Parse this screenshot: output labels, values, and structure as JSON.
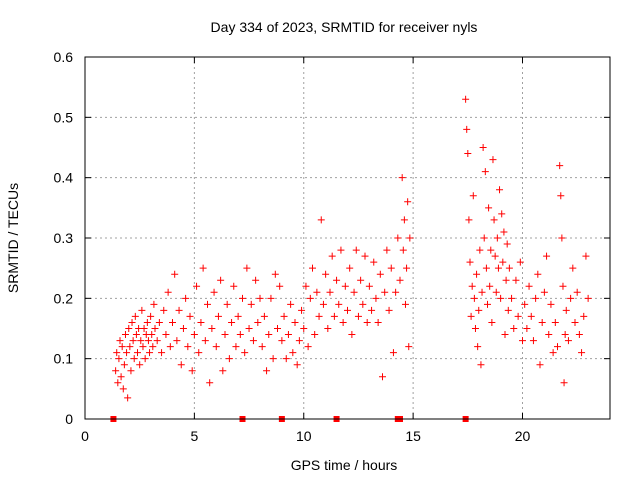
{
  "chart_data": {
    "type": "scatter",
    "title": "Day 334 of 2023, SRMTID for receiver nyls",
    "xlabel": "GPS time / hours",
    "ylabel": "SRMTID / TECUs",
    "xlim": [
      0,
      24
    ],
    "ylim": [
      0,
      0.6
    ],
    "xticks": [
      0,
      5,
      10,
      15,
      20
    ],
    "yticks": [
      0,
      0.1,
      0.2,
      0.3,
      0.4,
      0.5,
      0.6
    ],
    "xtick_labels": [
      "0",
      "5",
      "10",
      "15",
      "20"
    ],
    "ytick_labels": [
      "0",
      "0.1",
      "0.2",
      "0.3",
      "0.4",
      "0.5",
      "0.6"
    ],
    "grid": true,
    "marker": "+",
    "color": "#ff0000",
    "zero_markers_x": [
      1.3,
      7.2,
      9.0,
      11.5,
      14.3,
      14.4,
      17.4
    ],
    "series": [
      {
        "name": "SRMTID",
        "points": [
          [
            1.4,
            0.08
          ],
          [
            1.45,
            0.11
          ],
          [
            1.5,
            0.06
          ],
          [
            1.55,
            0.1
          ],
          [
            1.6,
            0.13
          ],
          [
            1.65,
            0.07
          ],
          [
            1.7,
            0.12
          ],
          [
            1.75,
            0.05
          ],
          [
            1.8,
            0.09
          ],
          [
            1.85,
            0.14
          ],
          [
            1.9,
            0.11
          ],
          [
            1.95,
            0.035
          ],
          [
            2.0,
            0.15
          ],
          [
            2.05,
            0.12
          ],
          [
            2.1,
            0.08
          ],
          [
            2.15,
            0.16
          ],
          [
            2.2,
            0.13
          ],
          [
            2.25,
            0.1
          ],
          [
            2.3,
            0.17
          ],
          [
            2.35,
            0.14
          ],
          [
            2.4,
            0.11
          ],
          [
            2.45,
            0.15
          ],
          [
            2.5,
            0.09
          ],
          [
            2.55,
            0.13
          ],
          [
            2.6,
            0.18
          ],
          [
            2.65,
            0.12
          ],
          [
            2.7,
            0.15
          ],
          [
            2.75,
            0.1
          ],
          [
            2.8,
            0.14
          ],
          [
            2.85,
            0.16
          ],
          [
            2.9,
            0.13
          ],
          [
            2.95,
            0.11
          ],
          [
            3.0,
            0.17
          ],
          [
            3.05,
            0.14
          ],
          [
            3.1,
            0.12
          ],
          [
            3.15,
            0.19
          ],
          [
            3.2,
            0.15
          ],
          [
            3.3,
            0.13
          ],
          [
            3.4,
            0.16
          ],
          [
            3.5,
            0.11
          ],
          [
            3.6,
            0.18
          ],
          [
            3.7,
            0.14
          ],
          [
            3.8,
            0.21
          ],
          [
            3.9,
            0.12
          ],
          [
            4.0,
            0.16
          ],
          [
            4.1,
            0.24
          ],
          [
            4.2,
            0.13
          ],
          [
            4.3,
            0.18
          ],
          [
            4.4,
            0.09
          ],
          [
            4.5,
            0.15
          ],
          [
            4.6,
            0.2
          ],
          [
            4.7,
            0.12
          ],
          [
            4.8,
            0.17
          ],
          [
            4.9,
            0.08
          ],
          [
            5.0,
            0.14
          ],
          [
            5.1,
            0.22
          ],
          [
            5.2,
            0.11
          ],
          [
            5.3,
            0.16
          ],
          [
            5.4,
            0.25
          ],
          [
            5.5,
            0.13
          ],
          [
            5.6,
            0.19
          ],
          [
            5.7,
            0.06
          ],
          [
            5.8,
            0.15
          ],
          [
            5.9,
            0.21
          ],
          [
            6.0,
            0.12
          ],
          [
            6.1,
            0.17
          ],
          [
            6.2,
            0.23
          ],
          [
            6.3,
            0.08
          ],
          [
            6.4,
            0.14
          ],
          [
            6.5,
            0.19
          ],
          [
            6.6,
            0.1
          ],
          [
            6.7,
            0.16
          ],
          [
            6.8,
            0.22
          ],
          [
            6.9,
            0.12
          ],
          [
            7.0,
            0.17
          ],
          [
            7.1,
            0.14
          ],
          [
            7.2,
            0.2
          ],
          [
            7.3,
            0.11
          ],
          [
            7.4,
            0.25
          ],
          [
            7.5,
            0.15
          ],
          [
            7.6,
            0.19
          ],
          [
            7.7,
            0.13
          ],
          [
            7.8,
            0.23
          ],
          [
            7.9,
            0.16
          ],
          [
            8.0,
            0.2
          ],
          [
            8.1,
            0.12
          ],
          [
            8.2,
            0.17
          ],
          [
            8.3,
            0.08
          ],
          [
            8.4,
            0.14
          ],
          [
            8.5,
            0.2
          ],
          [
            8.6,
            0.1
          ],
          [
            8.7,
            0.24
          ],
          [
            8.8,
            0.15
          ],
          [
            8.9,
            0.22
          ],
          [
            9.0,
            0.13
          ],
          [
            9.1,
            0.17
          ],
          [
            9.2,
            0.1
          ],
          [
            9.3,
            0.14
          ],
          [
            9.4,
            0.19
          ],
          [
            9.5,
            0.11
          ],
          [
            9.6,
            0.16
          ],
          [
            9.7,
            0.09
          ],
          [
            9.8,
            0.13
          ],
          [
            9.9,
            0.18
          ],
          [
            10.0,
            0.15
          ],
          [
            10.1,
            0.22
          ],
          [
            10.2,
            0.12
          ],
          [
            10.3,
            0.2
          ],
          [
            10.4,
            0.25
          ],
          [
            10.5,
            0.14
          ],
          [
            10.6,
            0.21
          ],
          [
            10.7,
            0.17
          ],
          [
            10.8,
            0.33
          ],
          [
            10.9,
            0.19
          ],
          [
            11.0,
            0.24
          ],
          [
            11.1,
            0.15
          ],
          [
            11.2,
            0.21
          ],
          [
            11.3,
            0.27
          ],
          [
            11.4,
            0.17
          ],
          [
            11.5,
            0.23
          ],
          [
            11.6,
            0.19
          ],
          [
            11.7,
            0.28
          ],
          [
            11.8,
            0.16
          ],
          [
            11.9,
            0.22
          ],
          [
            12.0,
            0.18
          ],
          [
            12.1,
            0.25
          ],
          [
            12.2,
            0.14
          ],
          [
            12.3,
            0.21
          ],
          [
            12.4,
            0.28
          ],
          [
            12.5,
            0.17
          ],
          [
            12.6,
            0.23
          ],
          [
            12.7,
            0.19
          ],
          [
            12.8,
            0.27
          ],
          [
            12.9,
            0.16
          ],
          [
            13.0,
            0.22
          ],
          [
            13.1,
            0.18
          ],
          [
            13.2,
            0.26
          ],
          [
            13.3,
            0.2
          ],
          [
            13.4,
            0.16
          ],
          [
            13.5,
            0.24
          ],
          [
            13.6,
            0.07
          ],
          [
            13.7,
            0.21
          ],
          [
            13.8,
            0.28
          ],
          [
            13.9,
            0.18
          ],
          [
            14.0,
            0.25
          ],
          [
            14.1,
            0.11
          ],
          [
            14.2,
            0.21
          ],
          [
            14.3,
            0.3
          ],
          [
            14.4,
            0.23
          ],
          [
            14.5,
            0.4
          ],
          [
            14.55,
            0.28
          ],
          [
            14.6,
            0.33
          ],
          [
            14.65,
            0.19
          ],
          [
            14.7,
            0.25
          ],
          [
            14.75,
            0.36
          ],
          [
            14.8,
            0.12
          ],
          [
            14.85,
            0.3
          ],
          [
            17.4,
            0.53
          ],
          [
            17.45,
            0.48
          ],
          [
            17.5,
            0.44
          ],
          [
            17.55,
            0.33
          ],
          [
            17.6,
            0.26
          ],
          [
            17.65,
            0.17
          ],
          [
            17.7,
            0.22
          ],
          [
            17.75,
            0.37
          ],
          [
            17.8,
            0.2
          ],
          [
            17.85,
            0.15
          ],
          [
            17.9,
            0.24
          ],
          [
            17.95,
            0.12
          ],
          [
            18.0,
            0.18
          ],
          [
            18.05,
            0.28
          ],
          [
            18.1,
            0.09
          ],
          [
            18.15,
            0.21
          ],
          [
            18.2,
            0.45
          ],
          [
            18.25,
            0.3
          ],
          [
            18.3,
            0.41
          ],
          [
            18.35,
            0.25
          ],
          [
            18.4,
            0.19
          ],
          [
            18.45,
            0.35
          ],
          [
            18.5,
            0.22
          ],
          [
            18.55,
            0.28
          ],
          [
            18.6,
            0.16
          ],
          [
            18.65,
            0.43
          ],
          [
            18.7,
            0.33
          ],
          [
            18.75,
            0.27
          ],
          [
            18.8,
            0.21
          ],
          [
            18.85,
            0.3
          ],
          [
            18.9,
            0.25
          ],
          [
            18.95,
            0.38
          ],
          [
            19.0,
            0.2
          ],
          [
            19.05,
            0.34
          ],
          [
            19.1,
            0.26
          ],
          [
            19.15,
            0.31
          ],
          [
            19.2,
            0.14
          ],
          [
            19.25,
            0.23
          ],
          [
            19.3,
            0.29
          ],
          [
            19.35,
            0.18
          ],
          [
            19.4,
            0.25
          ],
          [
            19.5,
            0.2
          ],
          [
            19.6,
            0.15
          ],
          [
            19.7,
            0.23
          ],
          [
            19.8,
            0.17
          ],
          [
            19.9,
            0.26
          ],
          [
            20.0,
            0.13
          ],
          [
            20.1,
            0.19
          ],
          [
            20.2,
            0.15
          ],
          [
            20.3,
            0.22
          ],
          [
            20.4,
            0.17
          ],
          [
            20.5,
            0.13
          ],
          [
            20.6,
            0.2
          ],
          [
            20.7,
            0.24
          ],
          [
            20.8,
            0.09
          ],
          [
            20.9,
            0.16
          ],
          [
            21.0,
            0.21
          ],
          [
            21.1,
            0.27
          ],
          [
            21.2,
            0.14
          ],
          [
            21.3,
            0.19
          ],
          [
            21.4,
            0.11
          ],
          [
            21.5,
            0.16
          ],
          [
            21.6,
            0.12
          ],
          [
            21.7,
            0.42
          ],
          [
            21.75,
            0.37
          ],
          [
            21.8,
            0.3
          ],
          [
            21.85,
            0.22
          ],
          [
            21.9,
            0.06
          ],
          [
            21.95,
            0.14
          ],
          [
            22.0,
            0.18
          ],
          [
            22.1,
            0.13
          ],
          [
            22.2,
            0.2
          ],
          [
            22.3,
            0.25
          ],
          [
            22.4,
            0.16
          ],
          [
            22.5,
            0.21
          ],
          [
            22.6,
            0.14
          ],
          [
            22.7,
            0.11
          ],
          [
            22.8,
            0.17
          ],
          [
            22.9,
            0.27
          ],
          [
            23.0,
            0.2
          ]
        ]
      }
    ]
  }
}
